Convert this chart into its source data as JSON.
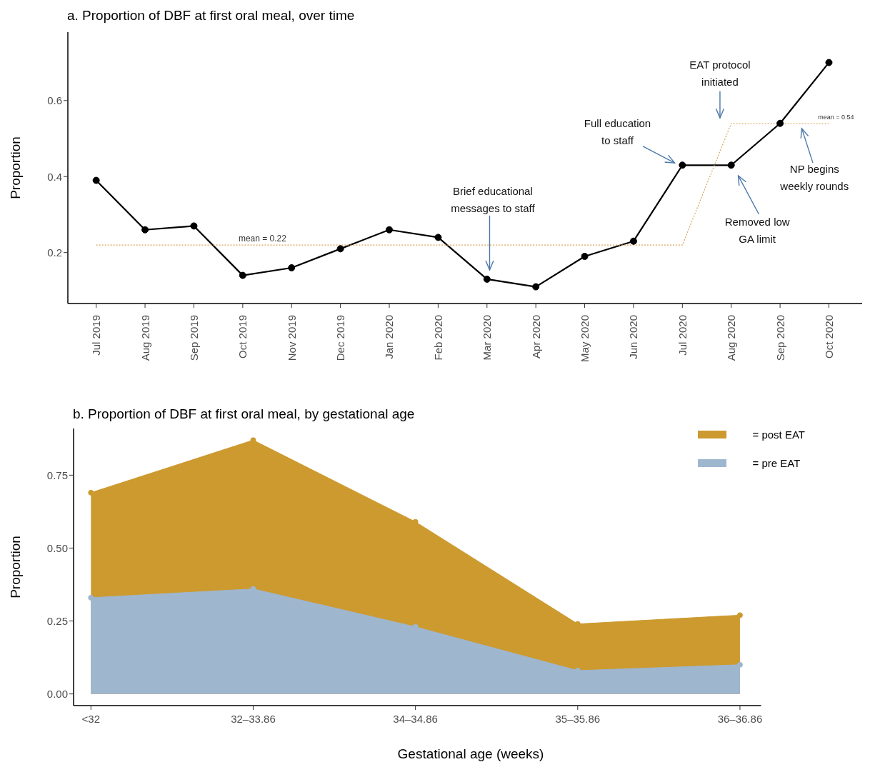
{
  "chart_data": [
    {
      "type": "line",
      "title": "a. Proportion of DBF at first oral meal, over time",
      "ylabel": "Proportion",
      "categories": [
        "Jul 2019",
        "Aug 2019",
        "Sep 2019",
        "Oct 2019",
        "Nov 2019",
        "Dec 2019",
        "Jan 2020",
        "Feb 2020",
        "Mar 2020",
        "Apr 2020",
        "May 2020",
        "Jun 2020",
        "Jul 2020",
        "Aug 2020",
        "Sep 2020",
        "Oct 2020"
      ],
      "series": [
        {
          "color": "#000000",
          "marker": "circle",
          "line_style": "solid",
          "values": [
            0.39,
            0.26,
            0.27,
            0.14,
            0.16,
            0.21,
            0.26,
            0.24,
            0.13,
            0.11,
            0.19,
            0.23,
            0.43,
            0.43,
            0.54,
            0.7
          ]
        },
        {
          "color": "#d9a45a",
          "marker": "none",
          "line_style": "dotted",
          "values": [
            0.22,
            0.22,
            0.22,
            0.22,
            0.22,
            0.22,
            0.22,
            0.22,
            0.22,
            0.22,
            0.22,
            0.22,
            0.22,
            0.54,
            0.54,
            0.54
          ]
        }
      ],
      "ylim": [
        0.066,
        0.78
      ],
      "yticks": [
        0.2,
        0.4,
        0.6
      ],
      "grid": false,
      "legend": false,
      "annotations": [
        "mean = 0.22",
        "mean = 0.54",
        "Brief educational\nmessages to staff",
        "Full education\nto staff",
        "EAT protocol\ninitiated",
        "Removed low\nGA limit",
        "NP begins\nweekly rounds"
      ]
    },
    {
      "type": "area",
      "title": "b. Proportion of DBF at first oral meal, by gestational age",
      "xlabel": "Gestational age (weeks)",
      "ylabel": "Proportion",
      "categories": [
        "<32",
        "32–33.86",
        "34–34.86",
        "35–35.86",
        "36–36.86"
      ],
      "series": [
        {
          "name": "= post EAT",
          "color": "#cc9a2e",
          "values": [
            0.69,
            0.87,
            0.59,
            0.24,
            0.27
          ]
        },
        {
          "name": "= pre EAT",
          "color": "#9fb6cf",
          "values": [
            0.33,
            0.36,
            0.23,
            0.08,
            0.1
          ]
        }
      ],
      "ylim": [
        -0.04,
        0.91
      ],
      "yticks": [
        {
          "value": 0,
          "label": "0.00"
        },
        {
          "value": 0.25,
          "label": "0.25"
        },
        {
          "value": 0.5,
          "label": "0.50"
        },
        {
          "value": 0.75,
          "label": "0.75"
        }
      ],
      "marker": "circle",
      "grid": false,
      "legend": "top right"
    }
  ]
}
